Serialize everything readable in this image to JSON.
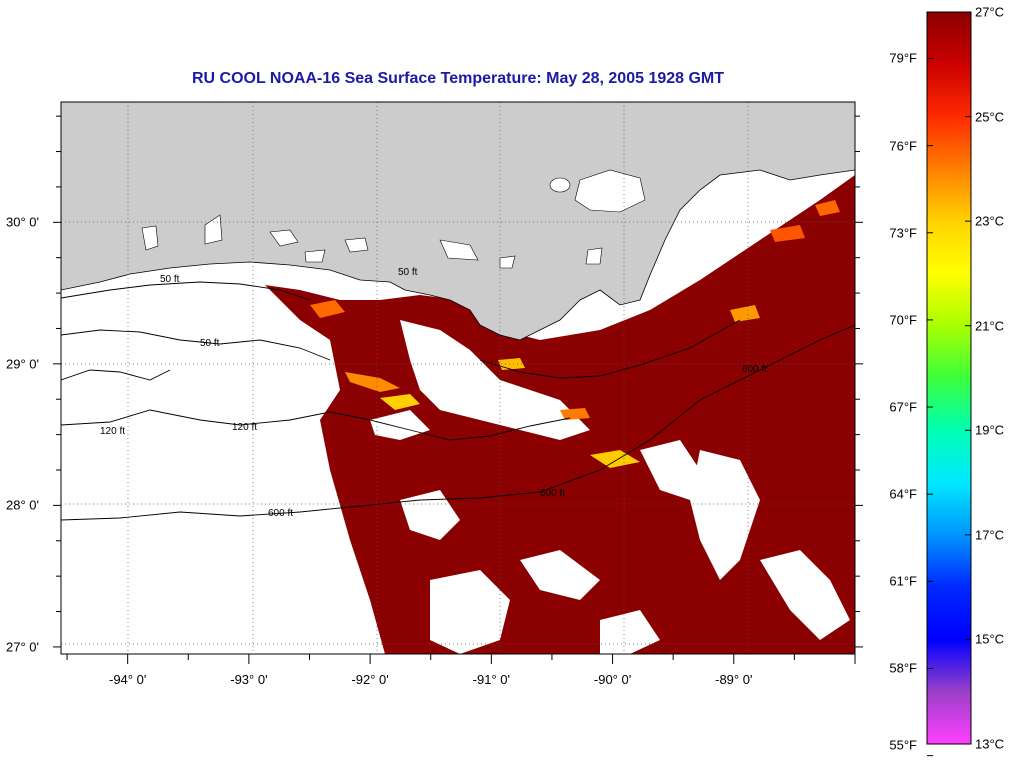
{
  "title": "RU COOL  NOAA-16  Sea Surface Temperature:  May 28, 2005 1928 GMT",
  "colors": {
    "title": "#1a1aa6",
    "land": "#cccccc",
    "ocean_warm": "#8b0000",
    "cloud": "#ffffff"
  },
  "map": {
    "lon_range": [
      -94.55,
      -88.0
    ],
    "lat_range": [
      26.95,
      30.85
    ],
    "lon_labels": [
      {
        "value": -94,
        "text": "-94° 0'"
      },
      {
        "value": -93,
        "text": "-93° 0'"
      },
      {
        "value": -92,
        "text": "-92° 0'"
      },
      {
        "value": -91,
        "text": "-91° 0'"
      },
      {
        "value": -90,
        "text": "-90° 0'"
      },
      {
        "value": -89,
        "text": "-89° 0'"
      }
    ],
    "lat_labels": [
      {
        "value": 30,
        "text": "30° 0'"
      },
      {
        "value": 29,
        "text": "29° 0'"
      },
      {
        "value": 28,
        "text": "28° 0'"
      },
      {
        "value": 27,
        "text": "27° 0'"
      }
    ],
    "contour_labels": [
      "50 ft",
      "120 ft",
      "600 ft"
    ]
  },
  "colorbar": {
    "fahrenheit": [
      {
        "value": 79,
        "text": "79°F"
      },
      {
        "value": 76,
        "text": "76°F"
      },
      {
        "value": 73,
        "text": "73°F"
      },
      {
        "value": 70,
        "text": "70°F"
      },
      {
        "value": 67,
        "text": "67°F"
      },
      {
        "value": 64,
        "text": "64°F"
      },
      {
        "value": 61,
        "text": "61°F"
      },
      {
        "value": 58,
        "text": "58°F"
      },
      {
        "value": 55,
        "text": "55°F"
      }
    ],
    "celsius": [
      {
        "value": 27,
        "text": "27°C"
      },
      {
        "value": 25,
        "text": "25°C"
      },
      {
        "value": 23,
        "text": "23°C"
      },
      {
        "value": 21,
        "text": "21°C"
      },
      {
        "value": 19,
        "text": "19°C"
      },
      {
        "value": 17,
        "text": "17°C"
      },
      {
        "value": 15,
        "text": "15°C"
      },
      {
        "value": 13,
        "text": "13°C"
      }
    ],
    "range_c": [
      13,
      27
    ],
    "gradient": [
      "#8b0000",
      "#cc0000",
      "#ff2a00",
      "#ff7f00",
      "#ffd200",
      "#ffff00",
      "#a8ff00",
      "#3cff3c",
      "#00ffb4",
      "#00e8ff",
      "#0096ff",
      "#0028ff",
      "#0000ff",
      "#9a40c8",
      "#ff40ff"
    ]
  }
}
